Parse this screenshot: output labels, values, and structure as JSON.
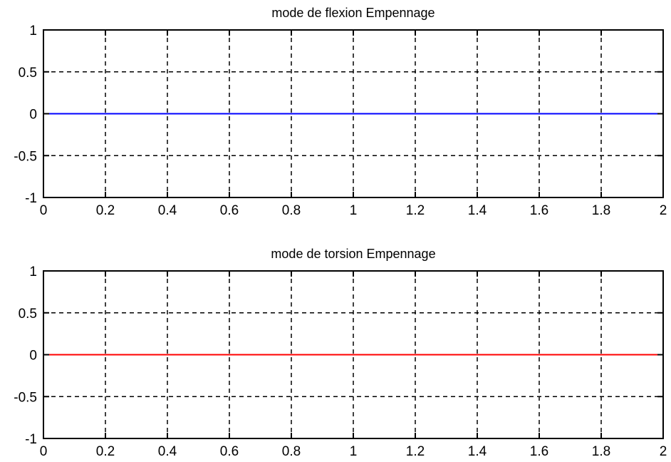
{
  "chart_data": [
    {
      "type": "line",
      "title": "mode de flexion Empennage",
      "xlabel": "",
      "ylabel": "",
      "xlim": [
        0,
        2
      ],
      "ylim": [
        -1,
        1
      ],
      "x_ticks": [
        "0",
        "0.2",
        "0.4",
        "0.6",
        "0.8",
        "1",
        "1.2",
        "1.4",
        "1.6",
        "1.8",
        "2"
      ],
      "y_ticks": [
        "1",
        "0.5",
        "0",
        "-0.5",
        "-1"
      ],
      "grid": true,
      "series": [
        {
          "color": "#0000ff",
          "x": [
            0,
            2
          ],
          "y": [
            0,
            0
          ]
        }
      ]
    },
    {
      "type": "line",
      "title": "mode de torsion Empennage",
      "xlabel": "",
      "ylabel": "",
      "xlim": [
        0,
        2
      ],
      "ylim": [
        -1,
        1
      ],
      "x_ticks": [
        "0",
        "0.2",
        "0.4",
        "0.6",
        "0.8",
        "1",
        "1.2",
        "1.4",
        "1.6",
        "1.8",
        "2"
      ],
      "y_ticks": [
        "1",
        "0.5",
        "0",
        "-0.5",
        "-1"
      ],
      "grid": true,
      "series": [
        {
          "color": "#ff0000",
          "x": [
            0,
            2
          ],
          "y": [
            0,
            0
          ]
        }
      ]
    }
  ]
}
